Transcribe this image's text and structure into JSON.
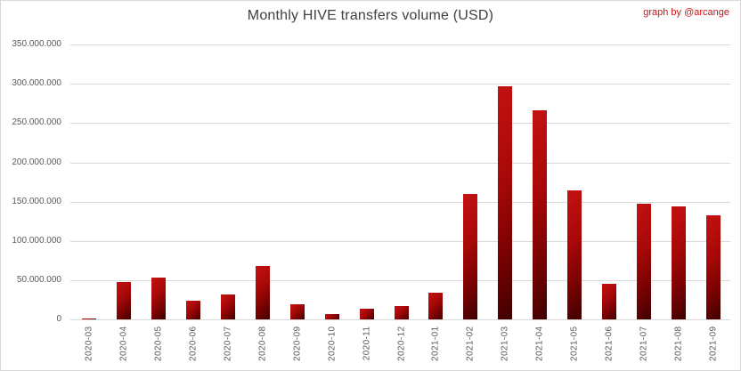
{
  "credit": {
    "text": "graph by @arcange",
    "color": "#cc1414"
  },
  "chart_data": {
    "type": "bar",
    "title": "Monthly HIVE transfers volume (USD)",
    "xlabel": "",
    "ylabel": "",
    "categories": [
      "2020-03",
      "2020-04",
      "2020-05",
      "2020-06",
      "2020-07",
      "2020-08",
      "2020-09",
      "2020-10",
      "2020-11",
      "2020-12",
      "2021-01",
      "2021-02",
      "2021-03",
      "2021-04",
      "2021-05",
      "2021-06",
      "2021-07",
      "2021-08",
      "2021-09"
    ],
    "values": [
      2000000,
      48000000,
      54000000,
      24000000,
      32000000,
      68000000,
      20000000,
      7000000,
      14000000,
      17000000,
      34000000,
      160000000,
      297000000,
      266000000,
      165000000,
      46000000,
      148000000,
      144000000,
      133000000
    ],
    "ylim": [
      0,
      350000000
    ],
    "y_ticks": [
      {
        "value": 350000000,
        "label": "350.000.000"
      },
      {
        "value": 300000000,
        "label": "300.000.000"
      },
      {
        "value": 250000000,
        "label": "250.000.000"
      },
      {
        "value": 200000000,
        "label": "200.000.000"
      },
      {
        "value": 150000000,
        "label": "150.000.000"
      },
      {
        "value": 100000000,
        "label": "100.000.000"
      },
      {
        "value": 50000000,
        "label": "50.000.000"
      },
      {
        "value": 0,
        "label": "0"
      }
    ],
    "grid": true,
    "legend": false,
    "bar_gradient": [
      "#c41212",
      "#a80808",
      "#3f0000"
    ],
    "gridline_color": "#d9d9d9",
    "tick_label_color": "#595959",
    "title_color": "#404040"
  }
}
